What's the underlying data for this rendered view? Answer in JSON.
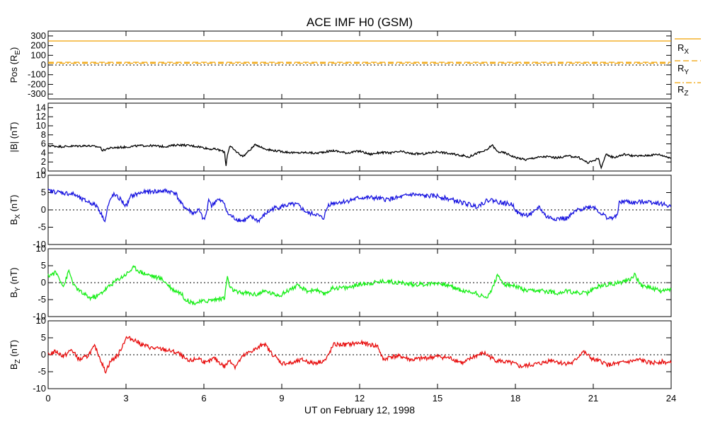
{
  "chart_data": {
    "type": "line",
    "title": "ACE IMF H0 (GSM)",
    "xlabel": "UT on February 12, 1998",
    "xlim": [
      0,
      24
    ],
    "xticks": [
      "0",
      "3",
      "6",
      "9",
      "12",
      "15",
      "18",
      "21",
      "24"
    ],
    "panels": [
      {
        "id": "pos",
        "ylabel": "Pos (R",
        "ylabel_sub": "E",
        "ylabel_tail": ")",
        "ylim": [
          -350,
          350
        ],
        "yticks": [
          "300",
          "200",
          "100",
          "0",
          "-100",
          "-200",
          "-300"
        ],
        "zero_line": true,
        "series": [
          {
            "name": "R",
            "name_sub": "X",
            "color": "#f0a000",
            "dash": "solid",
            "x": [
              0,
              24
            ],
            "y": [
              248,
              248
            ]
          },
          {
            "name": "R",
            "name_sub": "Y",
            "color": "#f0a000",
            "dash": "dashed",
            "x": [
              0,
              24
            ],
            "y": [
              28,
              28
            ]
          },
          {
            "name": "R",
            "name_sub": "Z",
            "color": "#f0a000",
            "dash": "dashdot",
            "x": [
              0,
              24
            ],
            "y": [
              18,
              18
            ]
          }
        ]
      },
      {
        "id": "bmag",
        "ylabel": "|B| (nT)",
        "ylim": [
          0,
          15
        ],
        "yticks": [
          "14",
          "12",
          "10",
          "8",
          "6",
          "4",
          "2",
          "0"
        ],
        "zero_line": false,
        "series": [
          {
            "color": "#000000",
            "x": [
              0,
              0.5,
              1,
              1.5,
              2,
              2.1,
              2.3,
              2.6,
              3,
              3.5,
              4,
              4.5,
              5,
              5.3,
              5.8,
              6.2,
              6.5,
              6.8,
              6.85,
              6.9,
              7.0,
              7.2,
              7.5,
              7.8,
              8.0,
              8.3,
              8.6,
              9,
              9.5,
              10,
              10.3,
              10.6,
              11,
              11.5,
              12,
              12.4,
              12.8,
              13.2,
              13.6,
              14,
              14.5,
              15,
              15.5,
              16,
              16.2,
              16.5,
              16.9,
              17.1,
              17.3,
              17.6,
              18,
              18.4,
              18.8,
              19.2,
              19.6,
              20,
              20.4,
              20.8,
              21.2,
              21.3,
              21.5,
              21.8,
              22.2,
              22.6,
              23,
              23.5,
              24
            ],
            "y": [
              5.6,
              5.4,
              5.5,
              5.6,
              5.3,
              4.5,
              5.0,
              5.2,
              5.3,
              5.6,
              5.6,
              5.4,
              5.8,
              5.7,
              5.4,
              4.9,
              4.8,
              4.2,
              1.0,
              3.5,
              5.5,
              4.5,
              3.2,
              4.8,
              5.9,
              5.0,
              4.6,
              4.3,
              4.0,
              4.1,
              3.9,
              4.2,
              4.5,
              4.0,
              4.4,
              3.7,
              4.1,
              4.0,
              4.3,
              3.8,
              3.8,
              4.3,
              3.8,
              3.4,
              3.1,
              3.9,
              4.6,
              5.8,
              4.3,
              4.0,
              3.0,
              2.5,
              3.0,
              3.2,
              2.9,
              3.3,
              3.1,
              1.8,
              2.8,
              0.8,
              3.6,
              3.0,
              3.7,
              3.3,
              3.4,
              3.7,
              2.9
            ]
          }
        ]
      },
      {
        "id": "bx",
        "ylabel": "B",
        "ylabel_sub": "X",
        "ylabel_tail": " (nT)",
        "ylim": [
          -10,
          10
        ],
        "yticks": [
          "10",
          "5",
          "0",
          "-5",
          "-10"
        ],
        "zero_line": true,
        "series": [
          {
            "color": "#1a16e0",
            "x": [
              0,
              0.5,
              1,
              1.3,
              1.6,
              1.9,
              2.1,
              2.2,
              2.3,
              2.5,
              2.8,
              3.0,
              3.2,
              3.6,
              4,
              4.5,
              4.9,
              5.1,
              5.3,
              5.6,
              5.8,
              6.0,
              6.1,
              6.2,
              6.3,
              6.5,
              6.8,
              6.9,
              7.0,
              7.2,
              7.5,
              7.8,
              8.1,
              8.4,
              8.7,
              9,
              9.3,
              9.6,
              10,
              10.3,
              10.6,
              10.8,
              11,
              11.5,
              12,
              12.5,
              13,
              13.5,
              14,
              14.5,
              15,
              15.5,
              16,
              16.5,
              17,
              17.5,
              17.9,
              18.1,
              18.4,
              18.7,
              18.9,
              19.2,
              19.5,
              20,
              20.3,
              20.6,
              21,
              21.3,
              21.6,
              21.9,
              22.0,
              22.2,
              22.6,
              23,
              23.5,
              24
            ],
            "y": [
              5.5,
              5.0,
              4.5,
              3.0,
              2.2,
              1.0,
              -2.0,
              -3.0,
              1.0,
              4.5,
              3.0,
              1.0,
              4.0,
              5.0,
              5.3,
              5.5,
              5.0,
              2.0,
              0.5,
              -1.0,
              0.0,
              -3.0,
              -1.0,
              3.5,
              1.0,
              3.0,
              2.0,
              -1.0,
              -1.5,
              -2.5,
              -3.2,
              -2.0,
              -3.2,
              -1.0,
              0.5,
              1.0,
              1.5,
              1.5,
              -1.0,
              -1.2,
              -2.5,
              1.5,
              2.0,
              2.5,
              3.5,
              3.5,
              3.0,
              3.5,
              4.5,
              4.0,
              4.0,
              3.0,
              2.0,
              1.0,
              3.0,
              2.0,
              1.5,
              -1.0,
              -1.5,
              -1.0,
              1.0,
              -2.0,
              -2.5,
              -2.5,
              -0.5,
              0.5,
              1.0,
              -1.0,
              -2.5,
              -2.0,
              2.0,
              2.5,
              2.0,
              2.5,
              2.0,
              1.0
            ]
          }
        ]
      },
      {
        "id": "by",
        "ylabel": "B",
        "ylabel_sub": "Y",
        "ylabel_tail": " (nT)",
        "ylim": [
          -10,
          10
        ],
        "yticks": [
          "10",
          "5",
          "0",
          "-5",
          "-10"
        ],
        "zero_line": true,
        "series": [
          {
            "color": "#18ee18",
            "x": [
              0,
              0.3,
              0.6,
              0.8,
              1.0,
              1.3,
              1.6,
              1.9,
              2.2,
              2.6,
              3.0,
              3.3,
              3.6,
              4,
              4.4,
              4.8,
              5.1,
              5.3,
              5.6,
              6.0,
              6.4,
              6.8,
              6.9,
              7.0,
              7.3,
              7.6,
              8,
              8.4,
              8.7,
              9,
              9.3,
              9.6,
              10,
              10.3,
              10.6,
              11,
              11.5,
              12,
              12.5,
              13,
              13.5,
              14,
              14.5,
              15,
              15.5,
              16,
              16.5,
              16.8,
              17.0,
              17.3,
              17.6,
              18,
              18.4,
              18.8,
              19.2,
              19.6,
              20,
              20.4,
              20.8,
              21.2,
              21.6,
              22,
              22.4,
              22.6,
              22.8,
              23.2,
              23.6,
              24
            ],
            "y": [
              2.0,
              3.0,
              -1.0,
              3.5,
              -1.0,
              -3.0,
              -4.5,
              -4.0,
              -2.0,
              0.5,
              2.5,
              4.5,
              3.0,
              2.0,
              1.0,
              -2.0,
              -3.0,
              -5.0,
              -6.0,
              -5.5,
              -5.0,
              -4.5,
              2.0,
              -1.5,
              -3.0,
              -3.0,
              -3.5,
              -2.5,
              -3.5,
              -3.5,
              -2.0,
              -1.0,
              -2.5,
              -2.0,
              -3.5,
              -1.5,
              -1.5,
              -0.5,
              0.0,
              0.5,
              0.0,
              -0.5,
              -0.5,
              0.0,
              -1.0,
              -2.5,
              -3.0,
              -4.5,
              -3.5,
              2.0,
              -0.5,
              -1.0,
              -2.5,
              -2.5,
              -2.5,
              -3.0,
              -2.5,
              -3.0,
              -3.0,
              -1.0,
              -0.5,
              0.0,
              1.0,
              2.5,
              -0.5,
              -1.5,
              -2.5,
              -2.0
            ]
          }
        ]
      },
      {
        "id": "bz",
        "ylabel": "B",
        "ylabel_sub": "Z",
        "ylabel_tail": " (nT)",
        "ylim": [
          -10,
          10
        ],
        "yticks": [
          "10",
          "5",
          "0",
          "-5",
          "-10"
        ],
        "zero_line": true,
        "series": [
          {
            "color": "#e81010",
            "x": [
              0,
              0.3,
              0.6,
              0.9,
              1.2,
              1.5,
              1.8,
              2.0,
              2.2,
              2.4,
              2.7,
              3.0,
              3.3,
              3.6,
              4,
              4.5,
              5,
              5.4,
              5.8,
              6.1,
              6.4,
              6.8,
              7.0,
              7.2,
              7.5,
              7.8,
              8.1,
              8.3,
              8.6,
              9,
              9.4,
              9.8,
              10.2,
              10.5,
              10.7,
              11,
              11.5,
              12,
              12.4,
              12.7,
              12.9,
              13.2,
              13.6,
              14,
              14.5,
              15,
              15.5,
              16,
              16.4,
              16.8,
              17.2,
              17.5,
              17.9,
              18.2,
              18.6,
              19,
              19.4,
              19.8,
              20.2,
              20.6,
              21,
              21.3,
              21.6,
              22,
              22.4,
              22.8,
              23.2,
              23.6,
              24
            ],
            "y": [
              0.0,
              1.0,
              -0.5,
              1.5,
              -1.5,
              -0.5,
              2.5,
              -1.0,
              -5.0,
              -2.0,
              0.0,
              5.0,
              4.5,
              3.0,
              2.0,
              1.5,
              0.5,
              -2.0,
              -1.0,
              -2.5,
              -1.0,
              -3.5,
              -1.5,
              -3.5,
              -0.5,
              1.0,
              2.0,
              3.5,
              0.5,
              -2.5,
              -2.5,
              -1.5,
              -2.5,
              -2.0,
              -1.5,
              3.0,
              3.0,
              3.5,
              3.0,
              2.5,
              -1.5,
              -0.5,
              -0.5,
              -1.5,
              -1.0,
              -0.5,
              -1.0,
              -2.5,
              -0.5,
              0.5,
              -1.5,
              -2.0,
              -2.5,
              -3.5,
              -3.0,
              -2.5,
              -1.5,
              -2.5,
              -2.5,
              1.0,
              -1.5,
              -2.0,
              -3.0,
              -2.5,
              -2.0,
              -1.5,
              -2.5,
              -2.0,
              -2.5
            ]
          }
        ]
      }
    ]
  }
}
